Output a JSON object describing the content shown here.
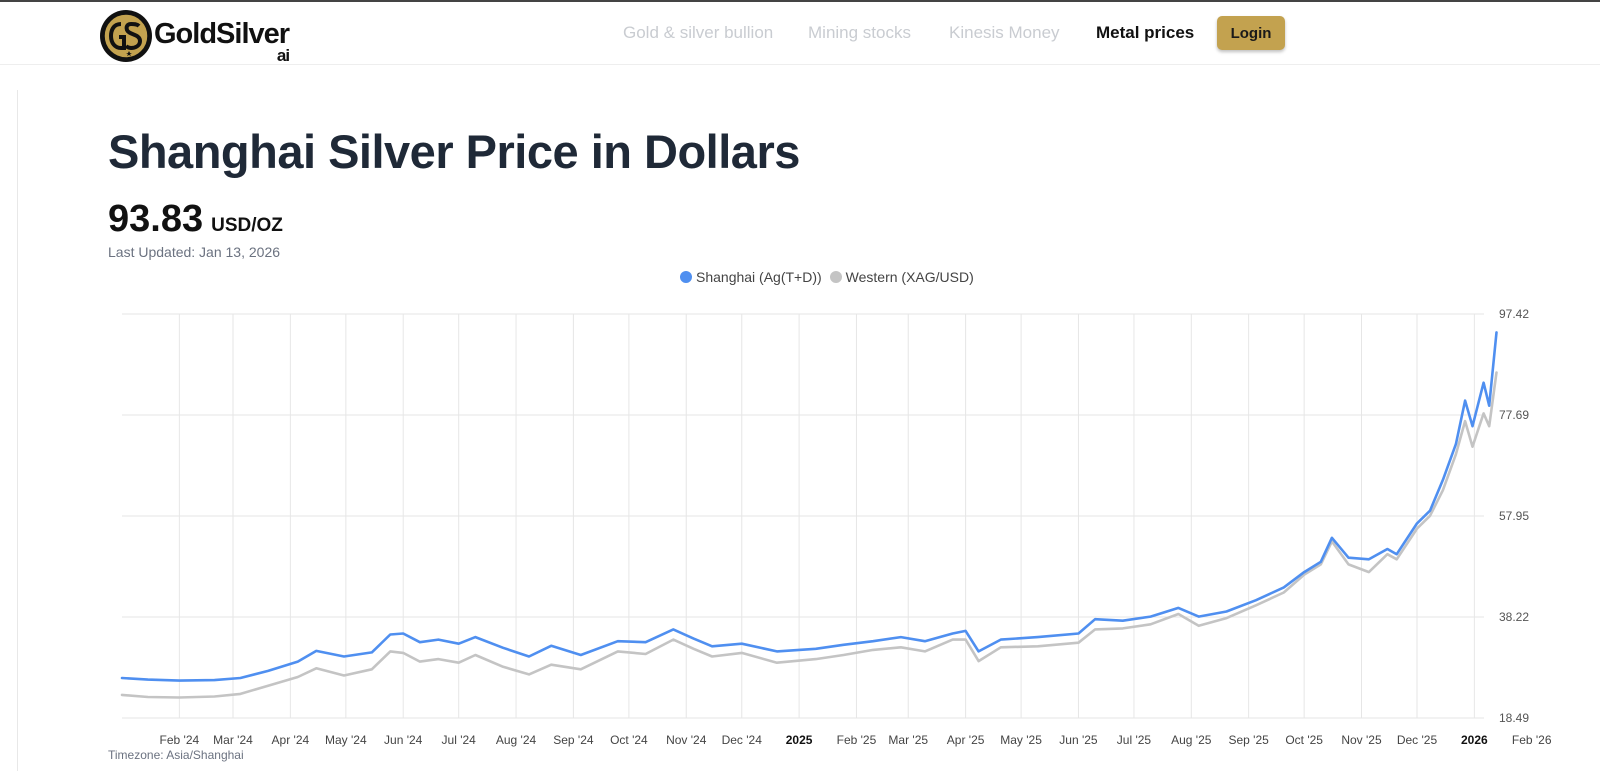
{
  "header": {
    "logo_text": "GoldSilver",
    "logo_sub": "ai",
    "nav": [
      {
        "label": "Gold & silver bullion",
        "active": false
      },
      {
        "label": "Mining stocks",
        "active": false
      },
      {
        "label": "Kinesis Money",
        "active": false
      },
      {
        "label": "Metal prices",
        "active": true
      }
    ],
    "login_label": "Login"
  },
  "page": {
    "title": "Shanghai Silver Price in Dollars",
    "price_value": "93.83",
    "price_unit": "USD/OZ",
    "last_updated": "Last Updated: Jan 13, 2026",
    "timezone": "Timezone: Asia/Shanghai"
  },
  "colors": {
    "brand_gold": "#c3a24f",
    "shanghai_line": "#4f8ff0",
    "western_line": "#c4c4c4"
  },
  "chart_data": {
    "type": "line",
    "title": "",
    "xlabel": "",
    "ylabel": "",
    "ylim": [
      18.49,
      97.42
    ],
    "y_ticks": [
      "97.42",
      "77.69",
      "57.95",
      "38.22",
      "18.49"
    ],
    "x_ticks": [
      "Feb '24",
      "Mar '24",
      "Apr '24",
      "May '24",
      "Jun '24",
      "Jul '24",
      "Aug '24",
      "Sep '24",
      "Oct '24",
      "Nov '24",
      "Dec '24",
      "2025",
      "Feb '25",
      "Mar '25",
      "Apr '25",
      "May '25",
      "Jun '25",
      "Jul '25",
      "Aug '25",
      "Sep '25",
      "Oct '25",
      "Nov '25",
      "Dec '25",
      "2026",
      "Feb '26"
    ],
    "x_ticks_bold": [
      "2025",
      "2026"
    ],
    "grid": true,
    "legend_position": "top-center",
    "series": [
      {
        "name": "Shanghai (Ag(T+D))",
        "color": "#4f8ff0",
        "points": [
          [
            "2024-01-01",
            26.3
          ],
          [
            "2024-01-15",
            26.0
          ],
          [
            "2024-02-01",
            25.8
          ],
          [
            "2024-02-20",
            25.9
          ],
          [
            "2024-03-05",
            26.3
          ],
          [
            "2024-03-20",
            27.7
          ],
          [
            "2024-04-05",
            29.5
          ],
          [
            "2024-04-15",
            31.6
          ],
          [
            "2024-04-30",
            30.5
          ],
          [
            "2024-05-15",
            31.3
          ],
          [
            "2024-05-25",
            34.8
          ],
          [
            "2024-06-01",
            35.0
          ],
          [
            "2024-06-10",
            33.3
          ],
          [
            "2024-06-20",
            33.8
          ],
          [
            "2024-07-01",
            33.0
          ],
          [
            "2024-07-10",
            34.3
          ],
          [
            "2024-07-25",
            32.2
          ],
          [
            "2024-08-08",
            30.5
          ],
          [
            "2024-08-20",
            32.6
          ],
          [
            "2024-09-05",
            30.8
          ],
          [
            "2024-09-25",
            33.5
          ],
          [
            "2024-10-10",
            33.3
          ],
          [
            "2024-10-25",
            35.8
          ],
          [
            "2024-11-05",
            34.0
          ],
          [
            "2024-11-15",
            32.5
          ],
          [
            "2024-12-01",
            33.0
          ],
          [
            "2024-12-20",
            31.5
          ],
          [
            "2025-01-10",
            32.0
          ],
          [
            "2025-01-25",
            32.8
          ],
          [
            "2025-02-10",
            33.5
          ],
          [
            "2025-02-25",
            34.3
          ],
          [
            "2025-03-10",
            33.5
          ],
          [
            "2025-03-25",
            35.0
          ],
          [
            "2025-04-01",
            35.5
          ],
          [
            "2025-04-08",
            31.5
          ],
          [
            "2025-04-20",
            33.8
          ],
          [
            "2025-05-10",
            34.3
          ],
          [
            "2025-06-01",
            35.0
          ],
          [
            "2025-06-10",
            37.8
          ],
          [
            "2025-06-25",
            37.5
          ],
          [
            "2025-07-10",
            38.3
          ],
          [
            "2025-07-25",
            40.0
          ],
          [
            "2025-08-05",
            38.3
          ],
          [
            "2025-08-20",
            39.3
          ],
          [
            "2025-09-05",
            41.5
          ],
          [
            "2025-09-20",
            44.0
          ],
          [
            "2025-10-01",
            47.0
          ],
          [
            "2025-10-10",
            49.0
          ],
          [
            "2025-10-16",
            53.7
          ],
          [
            "2025-10-25",
            49.8
          ],
          [
            "2025-11-05",
            49.5
          ],
          [
            "2025-11-15",
            51.5
          ],
          [
            "2025-11-20",
            50.5
          ],
          [
            "2025-12-01",
            56.5
          ],
          [
            "2025-12-08",
            59.0
          ],
          [
            "2025-12-15",
            65.0
          ],
          [
            "2025-12-22",
            72.0
          ],
          [
            "2025-12-27",
            80.5
          ],
          [
            "2025-12-31",
            75.5
          ],
          [
            "2026-01-06",
            84.0
          ],
          [
            "2026-01-09",
            79.5
          ],
          [
            "2026-01-13",
            93.83
          ]
        ]
      },
      {
        "name": "Western (XAG/USD)",
        "color": "#c4c4c4",
        "points": [
          [
            "2024-01-01",
            23.0
          ],
          [
            "2024-01-15",
            22.6
          ],
          [
            "2024-02-01",
            22.5
          ],
          [
            "2024-02-20",
            22.7
          ],
          [
            "2024-03-05",
            23.2
          ],
          [
            "2024-03-20",
            24.8
          ],
          [
            "2024-04-05",
            26.5
          ],
          [
            "2024-04-15",
            28.2
          ],
          [
            "2024-04-30",
            26.8
          ],
          [
            "2024-05-15",
            28.0
          ],
          [
            "2024-05-25",
            31.5
          ],
          [
            "2024-06-01",
            31.2
          ],
          [
            "2024-06-10",
            29.5
          ],
          [
            "2024-06-20",
            30.0
          ],
          [
            "2024-07-01",
            29.3
          ],
          [
            "2024-07-10",
            30.8
          ],
          [
            "2024-07-25",
            28.5
          ],
          [
            "2024-08-08",
            27.0
          ],
          [
            "2024-08-20",
            28.9
          ],
          [
            "2024-09-05",
            28.0
          ],
          [
            "2024-09-25",
            31.5
          ],
          [
            "2024-10-10",
            31.0
          ],
          [
            "2024-10-25",
            33.8
          ],
          [
            "2024-11-05",
            32.0
          ],
          [
            "2024-11-15",
            30.5
          ],
          [
            "2024-12-01",
            31.2
          ],
          [
            "2024-12-20",
            29.3
          ],
          [
            "2025-01-10",
            30.0
          ],
          [
            "2025-01-25",
            30.8
          ],
          [
            "2025-02-10",
            31.8
          ],
          [
            "2025-02-25",
            32.3
          ],
          [
            "2025-03-10",
            31.5
          ],
          [
            "2025-03-25",
            33.8
          ],
          [
            "2025-04-01",
            33.8
          ],
          [
            "2025-04-08",
            29.6
          ],
          [
            "2025-04-20",
            32.3
          ],
          [
            "2025-05-10",
            32.5
          ],
          [
            "2025-06-01",
            33.2
          ],
          [
            "2025-06-10",
            35.8
          ],
          [
            "2025-06-25",
            36.0
          ],
          [
            "2025-07-10",
            36.8
          ],
          [
            "2025-07-25",
            38.8
          ],
          [
            "2025-08-05",
            36.5
          ],
          [
            "2025-08-20",
            38.0
          ],
          [
            "2025-09-05",
            40.5
          ],
          [
            "2025-09-20",
            43.0
          ],
          [
            "2025-10-01",
            46.5
          ],
          [
            "2025-10-10",
            48.5
          ],
          [
            "2025-10-16",
            53.0
          ],
          [
            "2025-10-25",
            48.5
          ],
          [
            "2025-11-05",
            47.0
          ],
          [
            "2025-11-15",
            50.5
          ],
          [
            "2025-11-20",
            49.5
          ],
          [
            "2025-12-01",
            55.5
          ],
          [
            "2025-12-08",
            58.0
          ],
          [
            "2025-12-15",
            63.0
          ],
          [
            "2025-12-22",
            70.0
          ],
          [
            "2025-12-27",
            76.5
          ],
          [
            "2025-12-31",
            71.5
          ],
          [
            "2026-01-06",
            78.0
          ],
          [
            "2026-01-09",
            75.5
          ],
          [
            "2026-01-13",
            86.0
          ]
        ]
      }
    ]
  }
}
